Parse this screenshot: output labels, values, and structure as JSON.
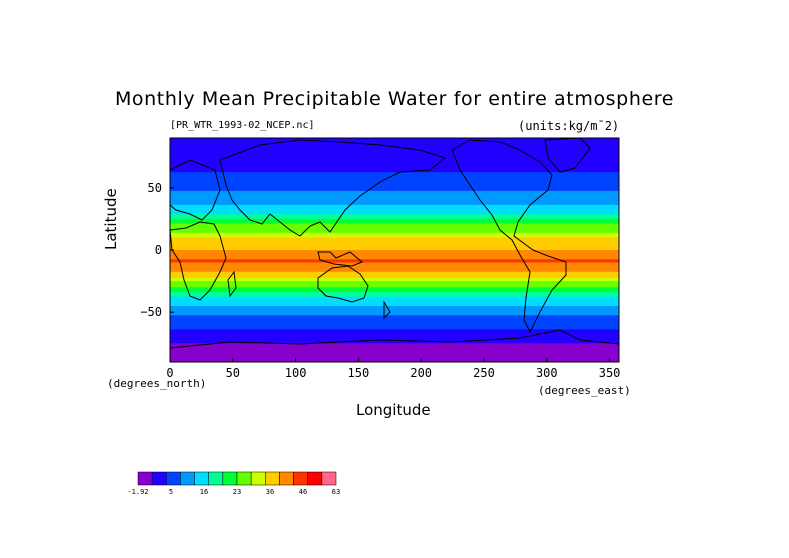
{
  "chart_data": {
    "type": "heatmap",
    "title": "Monthly Mean Precipitable Water for entire atmosphere",
    "file_label": "[PR_WTR_1993-02_NCEP.nc]",
    "units_label": "(units:kg/m¯2)",
    "xlabel": "Longitude",
    "ylabel": "Latitude",
    "x_unit_label": "(degrees_east)",
    "y_unit_label": "(degrees_north)",
    "xlim": [
      0,
      357.5
    ],
    "ylim": [
      -90,
      90
    ],
    "x_ticks": [
      "0",
      "50",
      "100",
      "150",
      "200",
      "250",
      "300",
      "350"
    ],
    "y_ticks": [
      "50",
      "0",
      "−50"
    ],
    "lat_profile": [
      {
        "lat": 90,
        "value": 3
      },
      {
        "lat": 70,
        "value": 5
      },
      {
        "lat": 55,
        "value": 9
      },
      {
        "lat": 40,
        "value": 15
      },
      {
        "lat": 25,
        "value": 25
      },
      {
        "lat": 10,
        "value": 40
      },
      {
        "lat": 0,
        "value": 44
      },
      {
        "lat": -10,
        "value": 50
      },
      {
        "lat": -20,
        "value": 42
      },
      {
        "lat": -30,
        "value": 30
      },
      {
        "lat": -45,
        "value": 16
      },
      {
        "lat": -60,
        "value": 8
      },
      {
        "lat": -75,
        "value": 3
      },
      {
        "lat": -90,
        "value": 0
      }
    ],
    "colorbar": {
      "tick_labels": [
        "-1.92",
        "5",
        "16",
        "23",
        "36",
        "46",
        "63"
      ],
      "colors": [
        "#8800cc",
        "#2200ff",
        "#0044ff",
        "#0099ff",
        "#00ddff",
        "#00ff99",
        "#00ff33",
        "#66ff00",
        "#ccff00",
        "#ffcc00",
        "#ff8800",
        "#ff3300",
        "#ff0000",
        "#ff6688"
      ]
    }
  }
}
